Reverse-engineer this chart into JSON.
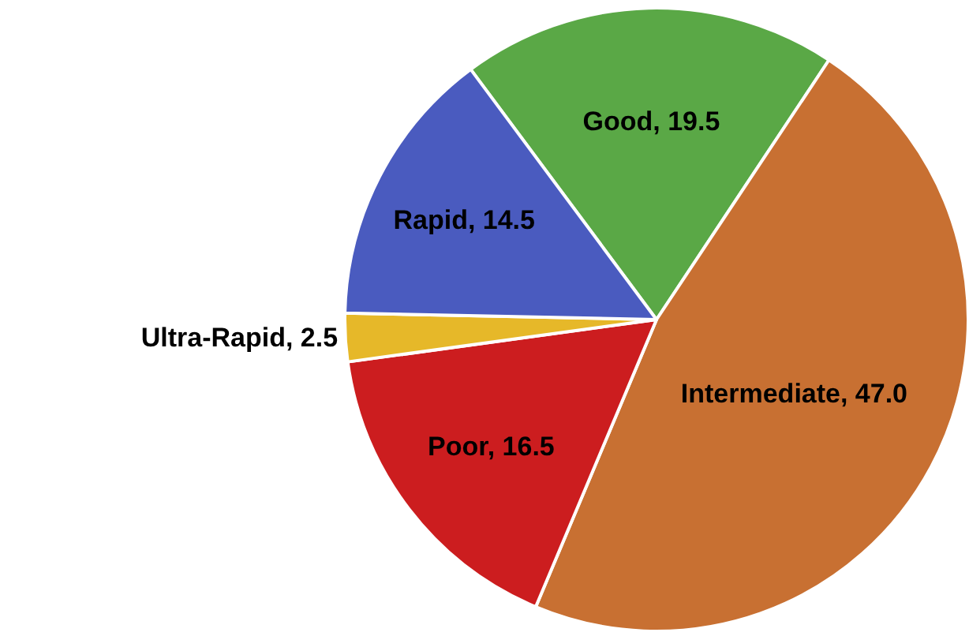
{
  "chart_data": {
    "type": "pie",
    "categories": [
      "Good",
      "Intermediate",
      "Poor",
      "Ultra-Rapid",
      "Rapid"
    ],
    "values": [
      19.5,
      47.0,
      16.5,
      2.5,
      14.5
    ],
    "value_labels": [
      "19.5",
      "47.0",
      "16.5",
      "2.5",
      "14.5"
    ],
    "colors": [
      "#5aa846",
      "#c87032",
      "#cc1d1f",
      "#e6b829",
      "#4a5bbf"
    ],
    "legend": false
  }
}
